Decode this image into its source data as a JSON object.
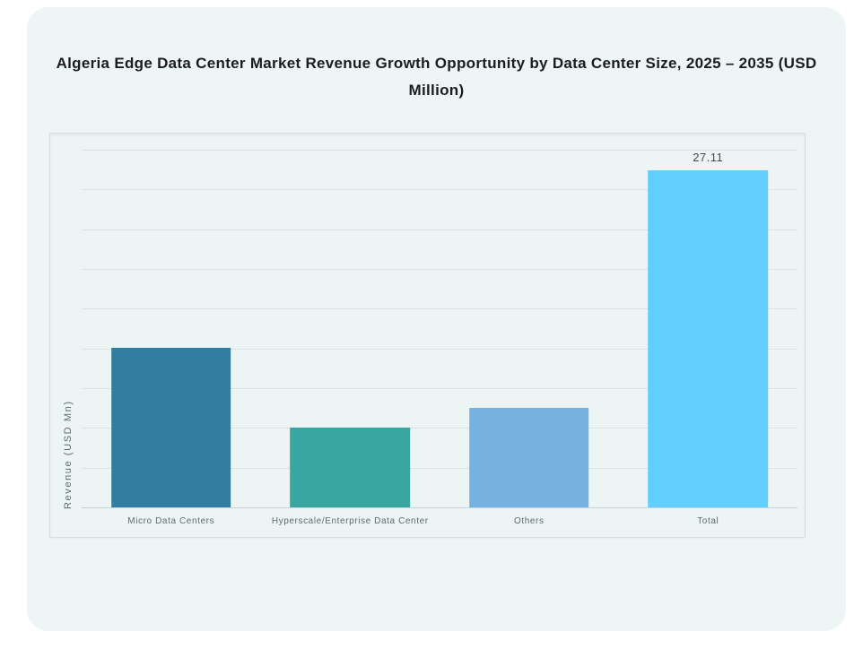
{
  "page": {
    "background": "#ffffff"
  },
  "card": {
    "background": "#eef6f5"
  },
  "chart_data": {
    "type": "bar",
    "title": "Algeria Edge Data Center Market Revenue Growth Opportunity by Data Center Size, 2025 – 2035 (USD Million)",
    "ylabel": "Revenue (USD Mn)",
    "xlabel": "",
    "categories": [
      "Micro Data Centers",
      "Hyperscale/Enterprise Data Center",
      "Others",
      "Total"
    ],
    "values": [
      12.8,
      6.4,
      8.0,
      27.11
    ],
    "value_labels": [
      "",
      "",
      "",
      "27.11"
    ],
    "bar_colors": [
      "#337e9e",
      "#39a6a1",
      "#76b3e2",
      "#62cffe"
    ],
    "ylim": [
      0,
      28.75
    ],
    "gridline_count": 10,
    "grid": "horizontal",
    "legend": "none",
    "y_tick_labels_visible": false
  },
  "colors": {
    "title_text": "#1c1c1e",
    "axis_label_text": "#5b6b72",
    "category_label_text": "#5b6b72",
    "value_label_text": "#3d4a50",
    "gridline": "#d9e3e4",
    "baseline": "#c6d2d4",
    "panel_border": "#d4dee1"
  }
}
